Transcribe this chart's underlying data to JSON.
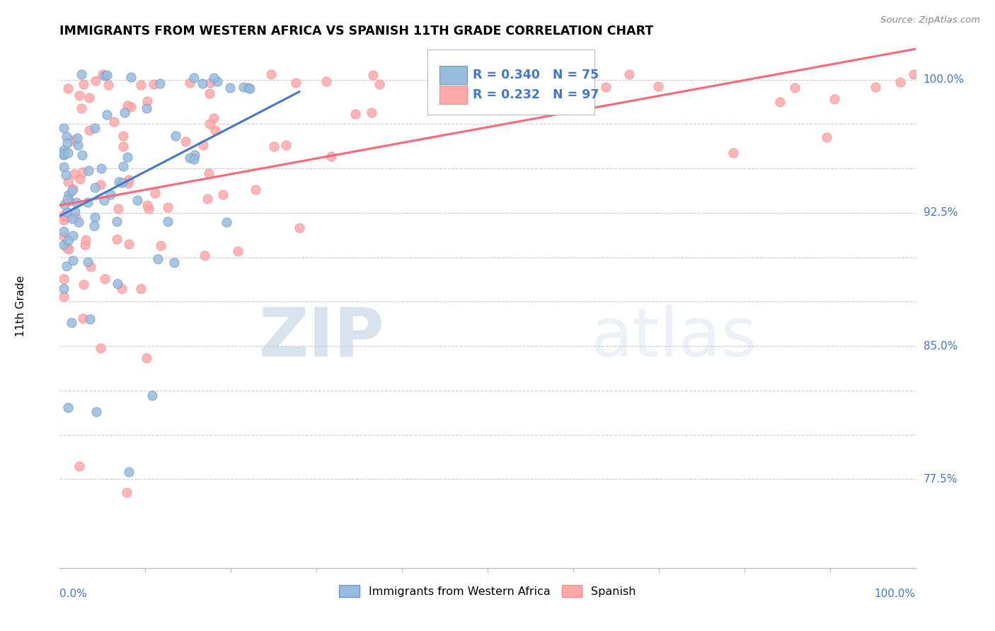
{
  "title": "IMMIGRANTS FROM WESTERN AFRICA VS SPANISH 11TH GRADE CORRELATION CHART",
  "source": "Source: ZipAtlas.com",
  "ylabel": "11th Grade",
  "y_grid": [
    0.775,
    0.8,
    0.825,
    0.85,
    0.875,
    0.9,
    0.925,
    0.95,
    0.975,
    1.0
  ],
  "y_tick_labels": [
    "77.5%",
    "",
    "",
    "85.0%",
    "",
    "",
    "92.5%",
    "",
    "",
    "100.0%"
  ],
  "xlim": [
    0.0,
    1.0
  ],
  "ylim": [
    0.725,
    1.02
  ],
  "blue_R": 0.34,
  "blue_N": 75,
  "pink_R": 0.232,
  "pink_N": 97,
  "blue_color": "#99BBDD",
  "pink_color": "#FFAAAA",
  "blue_edge_color": "#6699CC",
  "pink_edge_color": "#FF8888",
  "blue_line_color": "#4477CC",
  "pink_line_color": "#FF6677",
  "watermark_ZIP": "ZIP",
  "watermark_atlas": "atlas",
  "legend_label_blue": "Immigrants from Western Africa",
  "legend_label_pink": "Spanish",
  "blue_seed": 42,
  "pink_seed": 99
}
